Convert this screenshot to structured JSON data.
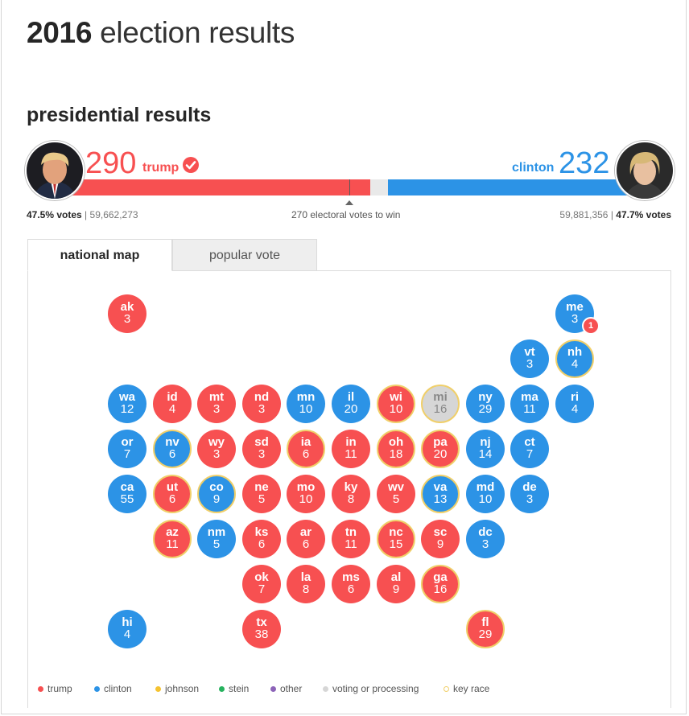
{
  "header": {
    "year": "2016",
    "title_rest": "election results"
  },
  "section_title": "presidential results",
  "trump": {
    "electoral_votes": "290",
    "name": "trump",
    "popular_pct": "47.5% votes",
    "popular_votes": "59,662,273",
    "winner": true,
    "color": "#f75051"
  },
  "clinton": {
    "electoral_votes": "232",
    "name": "clinton",
    "popular_pct": "47.7% votes",
    "popular_votes": "59,881,356",
    "color": "#2c93e6"
  },
  "progress": {
    "total_electoral_votes": 538,
    "trump": 290,
    "clinton": 232
  },
  "to_win_text": "270 electoral votes to win",
  "tabs": [
    {
      "label": "national map",
      "active": true
    },
    {
      "label": "popular vote",
      "active": false
    }
  ],
  "states": [
    {
      "abbr": "ak",
      "ev": "3",
      "party": "r",
      "key": false,
      "row": 0,
      "col": 0
    },
    {
      "abbr": "me",
      "ev": "3",
      "party": "d",
      "key": false,
      "row": 0,
      "col": 10
    },
    {
      "abbr": "vt",
      "ev": "3",
      "party": "d",
      "key": false,
      "row": 1,
      "col": 9
    },
    {
      "abbr": "nh",
      "ev": "4",
      "party": "d",
      "key": true,
      "row": 1,
      "col": 10
    },
    {
      "abbr": "wa",
      "ev": "12",
      "party": "d",
      "key": false,
      "row": 2,
      "col": 0
    },
    {
      "abbr": "id",
      "ev": "4",
      "party": "r",
      "key": false,
      "row": 2,
      "col": 1
    },
    {
      "abbr": "mt",
      "ev": "3",
      "party": "r",
      "key": false,
      "row": 2,
      "col": 2
    },
    {
      "abbr": "nd",
      "ev": "3",
      "party": "r",
      "key": false,
      "row": 2,
      "col": 3
    },
    {
      "abbr": "mn",
      "ev": "10",
      "party": "d",
      "key": false,
      "row": 2,
      "col": 4
    },
    {
      "abbr": "il",
      "ev": "20",
      "party": "d",
      "key": false,
      "row": 2,
      "col": 5
    },
    {
      "abbr": "wi",
      "ev": "10",
      "party": "r",
      "key": true,
      "row": 2,
      "col": 6
    },
    {
      "abbr": "mi",
      "ev": "16",
      "party": "p",
      "key": true,
      "row": 2,
      "col": 7
    },
    {
      "abbr": "ny",
      "ev": "29",
      "party": "d",
      "key": false,
      "row": 2,
      "col": 8
    },
    {
      "abbr": "ma",
      "ev": "11",
      "party": "d",
      "key": false,
      "row": 2,
      "col": 9
    },
    {
      "abbr": "ri",
      "ev": "4",
      "party": "d",
      "key": false,
      "row": 2,
      "col": 10
    },
    {
      "abbr": "or",
      "ev": "7",
      "party": "d",
      "key": false,
      "row": 3,
      "col": 0
    },
    {
      "abbr": "nv",
      "ev": "6",
      "party": "d",
      "key": true,
      "row": 3,
      "col": 1
    },
    {
      "abbr": "wy",
      "ev": "3",
      "party": "r",
      "key": false,
      "row": 3,
      "col": 2
    },
    {
      "abbr": "sd",
      "ev": "3",
      "party": "r",
      "key": false,
      "row": 3,
      "col": 3
    },
    {
      "abbr": "ia",
      "ev": "6",
      "party": "r",
      "key": true,
      "row": 3,
      "col": 4
    },
    {
      "abbr": "in",
      "ev": "11",
      "party": "r",
      "key": false,
      "row": 3,
      "col": 5
    },
    {
      "abbr": "oh",
      "ev": "18",
      "party": "r",
      "key": true,
      "row": 3,
      "col": 6
    },
    {
      "abbr": "pa",
      "ev": "20",
      "party": "r",
      "key": true,
      "row": 3,
      "col": 7
    },
    {
      "abbr": "nj",
      "ev": "14",
      "party": "d",
      "key": false,
      "row": 3,
      "col": 8
    },
    {
      "abbr": "ct",
      "ev": "7",
      "party": "d",
      "key": false,
      "row": 3,
      "col": 9
    },
    {
      "abbr": "ca",
      "ev": "55",
      "party": "d",
      "key": false,
      "row": 4,
      "col": 0
    },
    {
      "abbr": "ut",
      "ev": "6",
      "party": "r",
      "key": true,
      "row": 4,
      "col": 1
    },
    {
      "abbr": "co",
      "ev": "9",
      "party": "d",
      "key": true,
      "row": 4,
      "col": 2
    },
    {
      "abbr": "ne",
      "ev": "5",
      "party": "r",
      "key": false,
      "row": 4,
      "col": 3
    },
    {
      "abbr": "mo",
      "ev": "10",
      "party": "r",
      "key": false,
      "row": 4,
      "col": 4
    },
    {
      "abbr": "ky",
      "ev": "8",
      "party": "r",
      "key": false,
      "row": 4,
      "col": 5
    },
    {
      "abbr": "wv",
      "ev": "5",
      "party": "r",
      "key": false,
      "row": 4,
      "col": 6
    },
    {
      "abbr": "va",
      "ev": "13",
      "party": "d",
      "key": true,
      "row": 4,
      "col": 7
    },
    {
      "abbr": "md",
      "ev": "10",
      "party": "d",
      "key": false,
      "row": 4,
      "col": 8
    },
    {
      "abbr": "de",
      "ev": "3",
      "party": "d",
      "key": false,
      "row": 4,
      "col": 9
    },
    {
      "abbr": "az",
      "ev": "11",
      "party": "r",
      "key": true,
      "row": 5,
      "col": 1
    },
    {
      "abbr": "nm",
      "ev": "5",
      "party": "d",
      "key": false,
      "row": 5,
      "col": 2
    },
    {
      "abbr": "ks",
      "ev": "6",
      "party": "r",
      "key": false,
      "row": 5,
      "col": 3
    },
    {
      "abbr": "ar",
      "ev": "6",
      "party": "r",
      "key": false,
      "row": 5,
      "col": 4
    },
    {
      "abbr": "tn",
      "ev": "11",
      "party": "r",
      "key": false,
      "row": 5,
      "col": 5
    },
    {
      "abbr": "nc",
      "ev": "15",
      "party": "r",
      "key": true,
      "row": 5,
      "col": 6
    },
    {
      "abbr": "sc",
      "ev": "9",
      "party": "r",
      "key": false,
      "row": 5,
      "col": 7
    },
    {
      "abbr": "dc",
      "ev": "3",
      "party": "d",
      "key": false,
      "row": 5,
      "col": 8
    },
    {
      "abbr": "ok",
      "ev": "7",
      "party": "r",
      "key": false,
      "row": 6,
      "col": 3
    },
    {
      "abbr": "la",
      "ev": "8",
      "party": "r",
      "key": false,
      "row": 6,
      "col": 4
    },
    {
      "abbr": "ms",
      "ev": "6",
      "party": "r",
      "key": false,
      "row": 6,
      "col": 5
    },
    {
      "abbr": "al",
      "ev": "9",
      "party": "r",
      "key": false,
      "row": 6,
      "col": 6
    },
    {
      "abbr": "ga",
      "ev": "16",
      "party": "r",
      "key": true,
      "row": 6,
      "col": 7
    },
    {
      "abbr": "hi",
      "ev": "4",
      "party": "d",
      "key": false,
      "row": 7,
      "col": 0
    },
    {
      "abbr": "tx",
      "ev": "38",
      "party": "r",
      "key": false,
      "row": 7,
      "col": 3
    },
    {
      "abbr": "fl",
      "ev": "29",
      "party": "r",
      "key": true,
      "row": 7,
      "col": 8
    }
  ],
  "maine_split_badge": "1",
  "legend": [
    {
      "label": "trump",
      "color": "#f75051",
      "hollow": false
    },
    {
      "label": "clinton",
      "color": "#2c93e6",
      "hollow": false
    },
    {
      "label": "johnson",
      "color": "#f5c331",
      "hollow": false
    },
    {
      "label": "stein",
      "color": "#26b25e",
      "hollow": false
    },
    {
      "label": "other",
      "color": "#8c63b8",
      "hollow": false
    },
    {
      "label": "voting or processing",
      "color": "#d6d6d6",
      "hollow": false
    },
    {
      "label": "key race",
      "color": "#f0cf69",
      "hollow": true
    }
  ]
}
